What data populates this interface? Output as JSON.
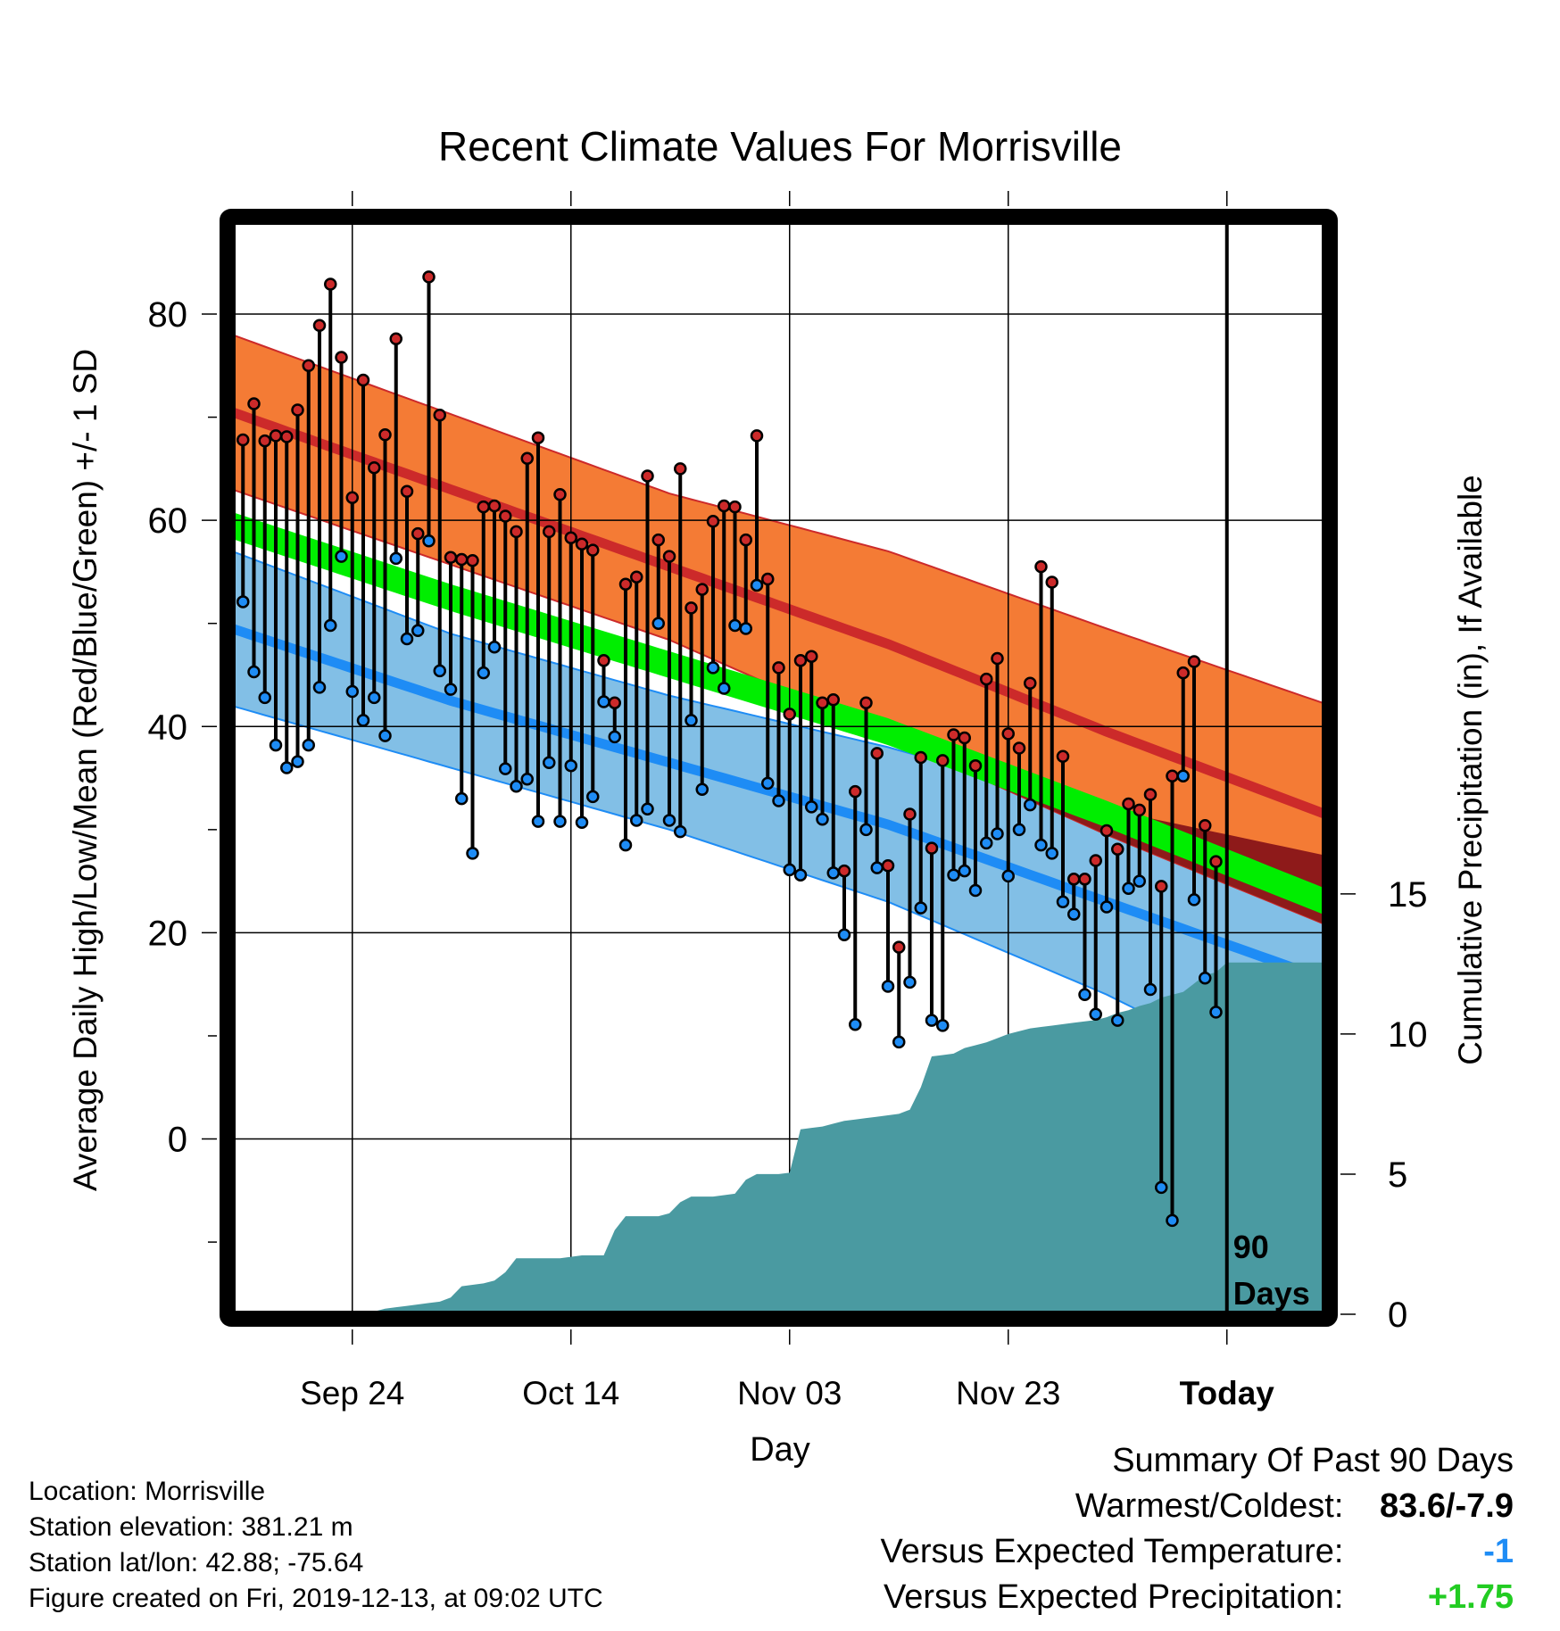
{
  "chart_data": {
    "type": "line",
    "title": "Recent Climate Values For Morrisville",
    "xlabel": "Day",
    "ylabel": "Average Daily High/Low/Mean (Red/Blue/Green) +/- 1 SD",
    "y2label": "Cumulative Precipitation (in), If Available",
    "x_tick_labels": [
      "Sep 24",
      "Oct 14",
      "Nov 03",
      "Nov 23",
      "Today"
    ],
    "x_tick_days": [
      11,
      31,
      51,
      71,
      91
    ],
    "x_range_days": [
      0,
      100
    ],
    "ylim": [
      -17,
      89
    ],
    "y_ticks": [
      0,
      20,
      40,
      60,
      80
    ],
    "y2lim": [
      0,
      39
    ],
    "y2_ticks": [
      0,
      5,
      10,
      15
    ],
    "today_label": "90 Days",
    "grid": true,
    "colors": {
      "high_band": "#f47b35",
      "high_mean": "#cc2a2a",
      "low_band": "#82bfe6",
      "low_mean": "#1e8cf5",
      "mean": "#00ee00",
      "overlap": "#8e1a1a",
      "precip": "#4a9aa1",
      "high_marker": "#cc2a2a",
      "low_marker": "#1e8cf5"
    },
    "normals": {
      "days": [
        0,
        20,
        40,
        60,
        80,
        100
      ],
      "high_mean": [
        70.5,
        63.0,
        55.5,
        48.0,
        39.5,
        31.5
      ],
      "high_sd": [
        7.5,
        7.3,
        7.1,
        9.0,
        10.0,
        10.7
      ],
      "low_mean": [
        49.5,
        42.5,
        36.5,
        30.5,
        23.0,
        15.5
      ],
      "low_sd": [
        7.5,
        6.5,
        6.5,
        7.5,
        9.0,
        12.0
      ],
      "mean": [
        59.5,
        52.5,
        46.0,
        39.5,
        31.5,
        23.0
      ],
      "mean_halfwidth": 1.3
    },
    "series": [
      {
        "name": "High",
        "values": [
          67.8,
          71.3,
          67.7,
          68.2,
          68.1,
          70.7,
          75.0,
          78.9,
          82.9,
          75.8,
          62.2,
          73.6,
          65.1,
          68.3,
          77.6,
          62.8,
          58.7,
          83.6,
          70.2,
          56.4,
          56.2,
          56.1,
          61.3,
          61.4,
          60.4,
          58.9,
          66.0,
          68.0,
          58.9,
          62.5,
          58.3,
          57.7,
          57.1,
          46.4,
          42.3,
          53.8,
          54.5,
          64.3,
          58.1,
          56.5,
          65.0,
          51.5,
          53.3,
          59.9,
          61.4,
          61.3,
          58.1,
          68.2,
          54.3,
          45.7,
          41.2,
          46.4,
          46.8,
          42.3,
          42.6,
          26.0,
          33.7,
          42.3,
          37.4,
          26.5,
          18.6,
          31.5,
          37.0,
          28.2,
          36.7,
          39.2,
          38.9,
          36.2,
          44.6,
          46.6,
          39.3,
          37.9,
          44.2,
          55.5,
          54.0,
          37.1,
          25.2,
          25.2,
          27.0,
          29.9,
          28.1,
          32.5,
          31.9,
          33.4,
          24.5,
          35.2,
          45.2,
          46.3,
          30.4,
          26.9
        ]
      },
      {
        "name": "Low",
        "values": [
          52.1,
          45.3,
          42.8,
          38.2,
          36.0,
          36.6,
          38.2,
          43.8,
          49.8,
          56.5,
          43.4,
          40.6,
          42.8,
          39.1,
          56.3,
          48.5,
          49.3,
          58.0,
          45.4,
          43.6,
          33.0,
          27.7,
          45.2,
          47.7,
          35.9,
          34.2,
          34.9,
          30.8,
          36.5,
          30.8,
          36.2,
          30.7,
          33.2,
          42.4,
          39.0,
          28.5,
          30.9,
          32.0,
          50.0,
          30.9,
          29.8,
          40.6,
          33.9,
          45.7,
          43.7,
          49.8,
          49.5,
          53.7,
          34.5,
          32.8,
          26.1,
          25.6,
          32.2,
          31.0,
          25.8,
          19.8,
          11.1,
          30.0,
          26.3,
          14.8,
          9.4,
          15.2,
          22.4,
          11.5,
          11.0,
          25.6,
          26.0,
          24.1,
          28.7,
          29.6,
          25.5,
          30.0,
          32.4,
          28.5,
          27.7,
          23.0,
          21.8,
          14.0,
          12.1,
          22.5,
          11.5,
          24.3,
          25.0,
          14.5,
          -4.7,
          -7.9,
          35.2,
          23.2,
          15.6,
          12.3
        ]
      },
      {
        "name": "Precipitation",
        "values": [
          0,
          0,
          0,
          0,
          0,
          0,
          0,
          0,
          0,
          0,
          0,
          0.05,
          0.1,
          0.2,
          0.25,
          0.3,
          0.35,
          0.4,
          0.45,
          0.6,
          1.0,
          1.05,
          1.1,
          1.2,
          1.5,
          2.0,
          2.0,
          2.0,
          2.0,
          2.0,
          2.05,
          2.1,
          2.1,
          2.1,
          3.0,
          3.5,
          3.5,
          3.5,
          3.5,
          3.6,
          4.0,
          4.2,
          4.2,
          4.2,
          4.25,
          4.3,
          4.8,
          5.0,
          5.0,
          5.0,
          5.05,
          6.6,
          6.65,
          6.7,
          6.8,
          6.9,
          6.95,
          7.0,
          7.05,
          7.1,
          7.15,
          7.3,
          8.1,
          9.2,
          9.25,
          9.3,
          9.5,
          9.6,
          9.7,
          9.85,
          10.0,
          10.1,
          10.2,
          10.25,
          10.3,
          10.35,
          10.4,
          10.45,
          10.5,
          10.6,
          10.75,
          10.85,
          11.0,
          11.1,
          11.3,
          11.4,
          11.5,
          11.8,
          12.1,
          12.2,
          12.55
        ]
      }
    ]
  },
  "footer": {
    "location": "Location: Morrisville",
    "elevation": "Station elevation: 381.21 m",
    "latlon": "Station lat/lon: 42.88; -75.64",
    "created": "Figure created on Fri, 2019-12-13, at 09:02 UTC"
  },
  "summary": {
    "title": "Summary Of Past 90 Days",
    "warmest_coldest_label": "Warmest/Coldest:",
    "warmest_coldest_value": "83.6/-7.9",
    "temp_label": "Versus Expected Temperature:",
    "temp_value": "-1",
    "temp_color": "#1e8cf5",
    "precip_label": "Versus Expected Precipitation:",
    "precip_value": "+1.75",
    "precip_color": "#22cc22"
  }
}
